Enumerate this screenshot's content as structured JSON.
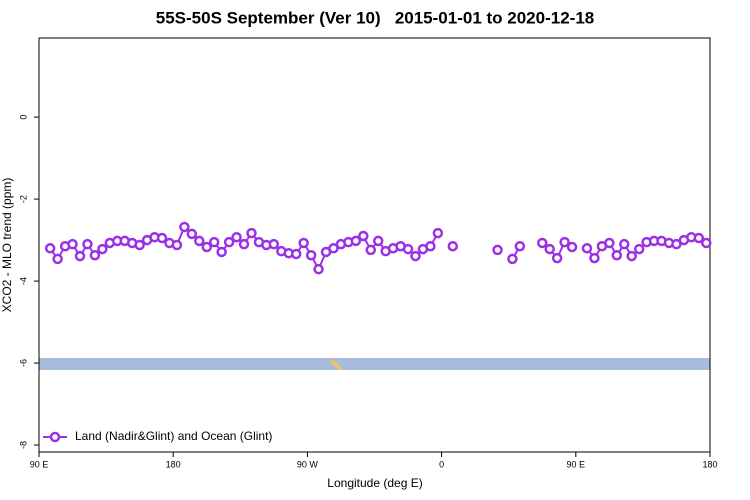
{
  "chart_data": {
    "type": "line",
    "title": "55S-50S September (Ver 10)   2015-01-01 to 2020-12-18",
    "x_label": "Longitude (deg E)",
    "y_label": "XCO2 - MLO trend (ppm)",
    "xlim": [
      90,
      540
    ],
    "xticks": [
      {
        "value": 90,
        "label": "90 E"
      },
      180,
      {
        "value": 270,
        "label": "90 W"
      },
      0,
      {
        "value": 450,
        "label": "90 E"
      },
      180
    ],
    "ylim": [
      -8.17,
      1.93
    ],
    "yticks": [
      0,
      -2,
      -4,
      -6,
      -8
    ],
    "legend": "bottomleft",
    "x": [
      97.5,
      102.5,
      107.5,
      112.5,
      117.5,
      122.5,
      127.5,
      132.5,
      137.5,
      142.5,
      147.5,
      152.5,
      157.5,
      162.5,
      167.5,
      172.5,
      177.5,
      182.5,
      187.5,
      192.5,
      197.5,
      202.5,
      207.5,
      212.5,
      217.5,
      222.5,
      227.5,
      232.5,
      237.5,
      242.5,
      247.5,
      252.5,
      257.5,
      262.5,
      267.5,
      272.5,
      277.5,
      282.5,
      287.5,
      292.5,
      297.5,
      302.5,
      307.5,
      312.5,
      317.5,
      322.5,
      327.5,
      332.5,
      337.5,
      342.5,
      347.5,
      352.5,
      357.5,
      362.5,
      367.5,
      372.5,
      377.5,
      382.5,
      387.5,
      392.5,
      397.5,
      402.5,
      407.5,
      412.5,
      417.5,
      422.5,
      427.5,
      432.5,
      437.5,
      442.5,
      447.5,
      452.5,
      457.5,
      462.5,
      467.5,
      472.5,
      477.5,
      482.5,
      487.5,
      492.5,
      497.5,
      502.5,
      507.5,
      512.5,
      517.5,
      522.5,
      527.5,
      532.5,
      537.5
    ],
    "series": [
      {
        "name": "Land (Nadir&Glint) and Ocean (Glint)",
        "color": "#9b30e6",
        "values": [
          -3.2,
          -3.46,
          -3.15,
          -3.1,
          -3.39,
          -3.1,
          -3.37,
          -3.22,
          -3.07,
          -3.02,
          -3.02,
          -3.07,
          -3.12,
          -3.0,
          -2.93,
          -2.95,
          -3.07,
          -3.12,
          -2.68,
          -2.85,
          -3.02,
          -3.17,
          -3.05,
          -3.29,
          -3.05,
          -2.93,
          -3.1,
          -2.83,
          -3.05,
          -3.12,
          -3.1,
          -3.27,
          -3.32,
          -3.34,
          -3.07,
          -3.37,
          -3.71,
          -3.29,
          -3.2,
          -3.1,
          -3.05,
          -3.02,
          -2.9,
          -3.24,
          -3.02,
          -3.27,
          -3.2,
          -3.15,
          -3.22,
          -3.39,
          -3.22,
          -3.15,
          -2.83,
          null,
          -3.15,
          null,
          null,
          null,
          null,
          null,
          -3.24,
          null,
          -3.46,
          -3.15,
          null,
          null,
          -3.07,
          -3.22,
          -3.44,
          -3.05,
          -3.17,
          null,
          -3.2,
          -3.44,
          -3.15,
          -3.07,
          -3.37,
          -3.1,
          -3.39,
          -3.22,
          -3.05,
          -3.02,
          -3.02,
          -3.07,
          -3.1,
          -3.0,
          -2.93,
          -2.95,
          -3.07
        ]
      }
    ]
  }
}
